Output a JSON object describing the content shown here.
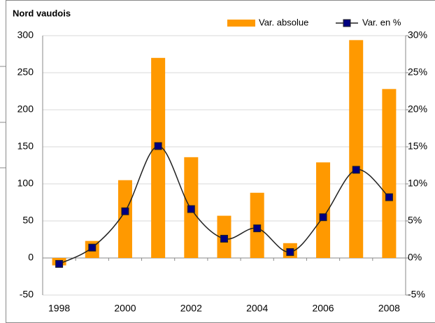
{
  "chart_data": {
    "type": "bar-line",
    "title": "Nord vaudois",
    "categories": [
      "1998",
      null,
      "2000",
      null,
      "2002",
      null,
      "2004",
      null,
      "2006",
      null,
      "2008"
    ],
    "series": [
      {
        "name": "Var. absolue",
        "color": "#ff9900",
        "type": "bar",
        "values": [
          -10,
          23,
          105,
          270,
          136,
          57,
          88,
          20,
          129,
          294,
          228
        ]
      },
      {
        "name": "Var. en %",
        "color": "#000080",
        "type": "line",
        "axis": "y2",
        "values": [
          -0.8,
          1.4,
          6.3,
          15.1,
          6.6,
          2.6,
          4.0,
          0.8,
          5.5,
          11.9,
          8.2
        ]
      }
    ],
    "ylim": [
      -50,
      300
    ],
    "yticks": [
      -50,
      0,
      50,
      100,
      150,
      200,
      250,
      300
    ],
    "y2lim": [
      -5,
      30
    ],
    "y2ticks": [
      {
        "value": -5,
        "label": "-5%"
      },
      {
        "value": 0,
        "label": "0%"
      },
      {
        "value": 5,
        "label": "5%"
      },
      {
        "value": 10,
        "label": "10%"
      },
      {
        "value": 15,
        "label": "15%"
      },
      {
        "value": 20,
        "label": "20%"
      },
      {
        "value": 25,
        "label": "25%"
      },
      {
        "value": 30,
        "label": "30%"
      }
    ],
    "grid": true,
    "legend": "top-right"
  }
}
